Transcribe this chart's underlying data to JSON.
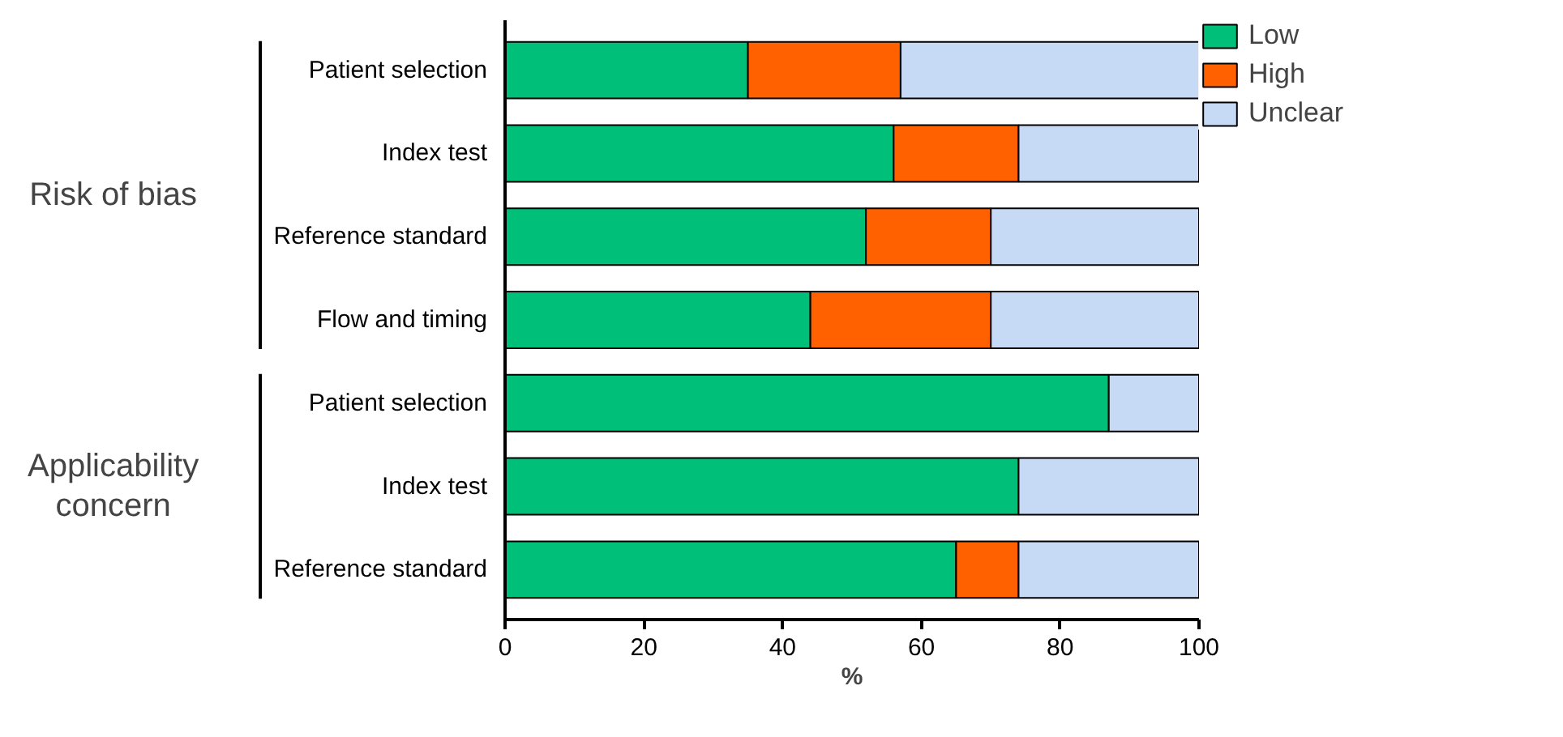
{
  "chart_data": {
    "type": "bar",
    "orientation": "horizontal",
    "stacked": true,
    "xlabel": "%",
    "categories": [
      "Patient selection",
      "Index test",
      "Reference standard",
      "Flow and timing",
      "Patient selection",
      "Index test",
      "Reference standard"
    ],
    "series": [
      {
        "name": "Low",
        "color": "#00bf78",
        "values": [
          35,
          56,
          52,
          44,
          87,
          74,
          65
        ]
      },
      {
        "name": "High",
        "color": "#ff6000",
        "values": [
          22,
          18,
          18,
          26,
          null,
          null,
          9
        ]
      },
      {
        "name": "Unclear",
        "color": "#c6daf6",
        "values": [
          43,
          26,
          30,
          30,
          13,
          26,
          26
        ]
      }
    ],
    "xlim": [
      0,
      100
    ],
    "xticks": [
      0,
      20,
      40,
      60,
      80,
      100
    ],
    "grid": false,
    "legend": "top right",
    "annotations": [
      "Risk of bias",
      "Applicability concern"
    ]
  }
}
